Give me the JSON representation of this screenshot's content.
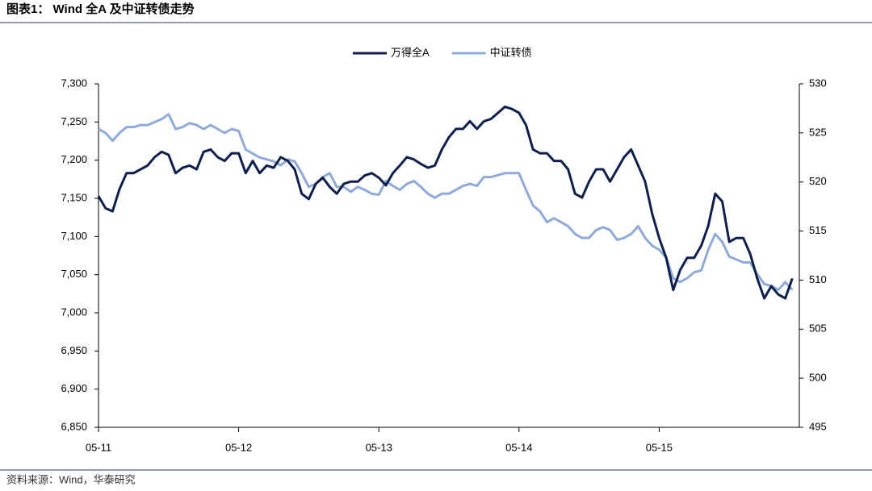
{
  "chart_data": {
    "type": "line",
    "title": "图表1： Wind 全A 及中证转债走势",
    "source": "资料来源：Wind，华泰研究",
    "categories": [
      "05-11",
      null,
      null,
      null,
      null,
      null,
      null,
      null,
      null,
      null,
      null,
      null,
      null,
      null,
      null,
      null,
      null,
      null,
      null,
      null,
      "05-12",
      null,
      null,
      null,
      null,
      null,
      null,
      null,
      null,
      null,
      null,
      null,
      null,
      null,
      null,
      null,
      null,
      null,
      null,
      null,
      "05-13",
      null,
      null,
      null,
      null,
      null,
      null,
      null,
      null,
      null,
      null,
      null,
      null,
      null,
      null,
      null,
      null,
      null,
      null,
      null,
      "05-14",
      null,
      null,
      null,
      null,
      null,
      null,
      null,
      null,
      null,
      null,
      null,
      null,
      null,
      null,
      null,
      null,
      null,
      null,
      null,
      "05-15",
      null,
      null,
      null,
      null,
      null,
      null,
      null,
      null,
      null,
      null,
      null,
      null,
      null,
      null,
      null,
      null,
      null,
      null,
      null
    ],
    "series": [
      {
        "name": "万得全A",
        "color": "#0c1f4f",
        "axis": "y",
        "values": [
          7153,
          7137,
          7133,
          7162,
          7183,
          7183,
          7188,
          7193,
          7204,
          7211,
          7207,
          7183,
          7190,
          7193,
          7188,
          7211,
          7214,
          7204,
          7199,
          7209,
          7209,
          7183,
          7199,
          7183,
          7193,
          7190,
          7204,
          7199,
          7188,
          7156,
          7149,
          7169,
          7177,
          7165,
          7156,
          7169,
          7172,
          7172,
          7180,
          7183,
          7177,
          7167,
          7183,
          7193,
          7204,
          7201,
          7195,
          7190,
          7193,
          7214,
          7230,
          7241,
          7241,
          7251,
          7241,
          7251,
          7254,
          7262,
          7270,
          7267,
          7262,
          7246,
          7214,
          7209,
          7209,
          7199,
          7199,
          7188,
          7156,
          7151,
          7172,
          7188,
          7188,
          7172,
          7188,
          7204,
          7214,
          7193,
          7172,
          7130,
          7098,
          7072,
          7030,
          7056,
          7072,
          7072,
          7088,
          7114,
          7156,
          7146,
          7093,
          7098,
          7098,
          7077,
          7045,
          7019,
          7035,
          7024,
          7019,
          7045
        ]
      },
      {
        "name": "中证转债",
        "color": "#8eaadb",
        "axis": "y2",
        "values": [
          525.4,
          525.0,
          524.2,
          525.0,
          525.6,
          525.6,
          525.8,
          525.8,
          526.1,
          526.4,
          526.9,
          525.4,
          525.6,
          526.0,
          525.8,
          525.4,
          525.8,
          525.4,
          525.0,
          525.4,
          525.2,
          523.3,
          522.9,
          522.5,
          522.3,
          522.1,
          521.7,
          522.3,
          522.1,
          520.9,
          519.5,
          519.8,
          520.5,
          520.9,
          519.5,
          519.5,
          519.0,
          519.5,
          519.2,
          518.8,
          518.7,
          520.1,
          519.6,
          519.2,
          519.8,
          520.1,
          519.5,
          518.8,
          518.4,
          518.8,
          518.8,
          519.2,
          519.6,
          519.8,
          519.6,
          520.5,
          520.5,
          520.7,
          520.9,
          520.9,
          520.9,
          519.2,
          517.6,
          517.0,
          515.9,
          516.3,
          515.9,
          515.5,
          514.7,
          514.3,
          514.3,
          515.1,
          515.4,
          515.1,
          514.1,
          514.3,
          514.7,
          515.5,
          514.3,
          513.5,
          513.1,
          512.3,
          510.2,
          509.8,
          510.2,
          510.8,
          511.0,
          513.1,
          514.7,
          513.9,
          512.4,
          512.1,
          511.8,
          511.8,
          510.6,
          509.6,
          509.4,
          509.0,
          509.8,
          509.0
        ]
      }
    ],
    "ylim": [
      6850,
      7300
    ],
    "yticks": [
      {
        "value": 6850,
        "label": "6,850"
      },
      {
        "value": 6900,
        "label": "6,900"
      },
      {
        "value": 6950,
        "label": "6,950"
      },
      {
        "value": 7000,
        "label": "7,000"
      },
      {
        "value": 7050,
        "label": "7,050"
      },
      {
        "value": 7100,
        "label": "7,100"
      },
      {
        "value": 7150,
        "label": "7,150"
      },
      {
        "value": 7200,
        "label": "7,200"
      },
      {
        "value": 7250,
        "label": "7,250"
      },
      {
        "value": 7300,
        "label": "7,300"
      }
    ],
    "y2lim": [
      495,
      530
    ],
    "y2ticks": [
      495,
      500,
      505,
      510,
      515,
      520,
      525,
      530
    ],
    "legend": "top",
    "grid": false
  }
}
